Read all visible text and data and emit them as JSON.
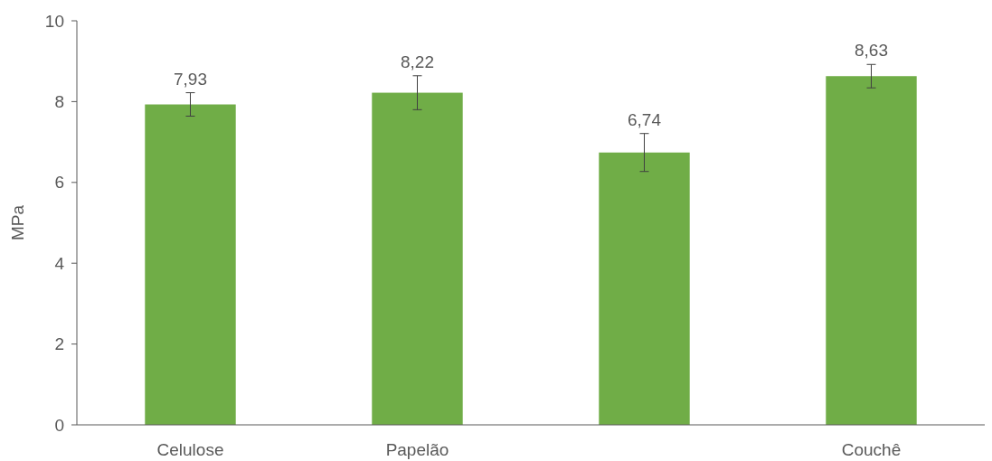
{
  "chart_data": {
    "type": "bar",
    "ylabel": "MPa",
    "categories": [
      "Celulose",
      "Papelão",
      null,
      "Couchê"
    ],
    "values": [
      7.93,
      8.22,
      6.74,
      8.63
    ],
    "color": "#70ad47",
    "errors": [
      0.29,
      0.42,
      0.47,
      0.29
    ],
    "value_labels": [
      "7,93",
      "8,22",
      "6,74",
      "8,63"
    ],
    "ylim": [
      0,
      10
    ],
    "yticks": [
      0,
      2,
      4,
      6,
      8,
      10
    ],
    "grid": false
  }
}
